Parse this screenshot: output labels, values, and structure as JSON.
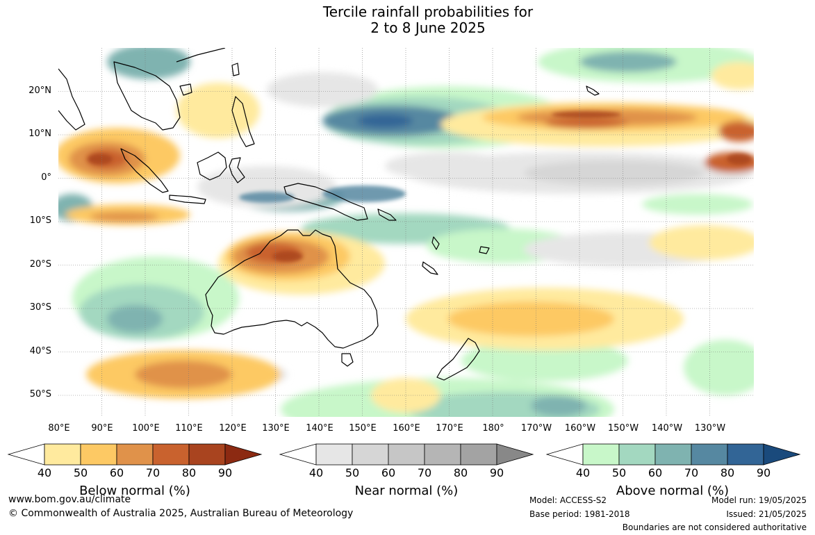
{
  "title_line1": "Tercile rainfall probabilities for",
  "title_line2": "2 to 8 June 2025",
  "lat_labels": [
    "20°N",
    "10°N",
    "0°",
    "10°S",
    "20°S",
    "30°S",
    "40°S",
    "50°S"
  ],
  "lon_labels": [
    "80°E",
    "90°E",
    "100°E",
    "110°E",
    "120°E",
    "130°E",
    "140°E",
    "150°E",
    "160°E",
    "170°E",
    "180°",
    "170°W",
    "160°W",
    "150°W",
    "140°W",
    "130°W"
  ],
  "colorbars": [
    {
      "title": "Below normal (%)",
      "ticks": [
        "40",
        "50",
        "60",
        "70",
        "80",
        "90"
      ],
      "colors": [
        "#ffffff",
        "#ffea9e",
        "#fdc964",
        "#e0924a",
        "#c9622e",
        "#a9441f",
        "#8c2a12"
      ]
    },
    {
      "title": "Near normal (%)",
      "ticks": [
        "40",
        "50",
        "60",
        "70",
        "80",
        "90"
      ],
      "colors": [
        "#ffffff",
        "#e6e6e6",
        "#d6d6d6",
        "#c6c6c6",
        "#b5b5b5",
        "#a3a3a3",
        "#888888"
      ]
    },
    {
      "title": "Above normal (%)",
      "ticks": [
        "40",
        "50",
        "60",
        "70",
        "80",
        "90"
      ],
      "colors": [
        "#ffffff",
        "#c8f7c9",
        "#a3d8c0",
        "#7fb3b0",
        "#5688a1",
        "#326596",
        "#1a4a7c"
      ]
    }
  ],
  "footer": {
    "website": "www.bom.gov.au/climate",
    "copyright": "© Commonwealth of Australia 2025, Australian Bureau of Meteorology",
    "model": "Model: ACCESS-S2",
    "base_period": "Base period: 1981-2018",
    "model_run": "Model run: 19/05/2025",
    "issued": "Issued: 21/05/2025",
    "disclaimer": "Boundaries are not considered authoritative"
  }
}
